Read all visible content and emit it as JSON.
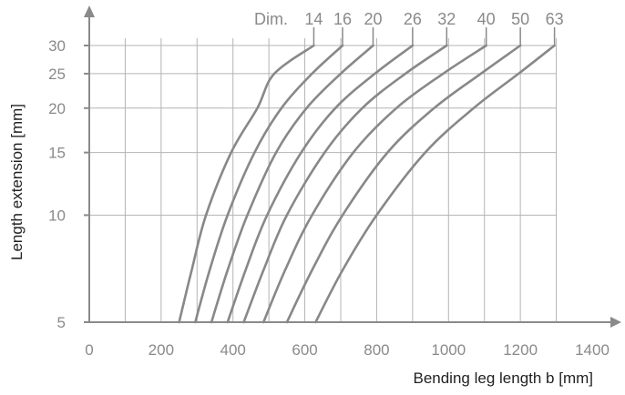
{
  "chart_data": {
    "type": "line",
    "title": "",
    "xlabel": "Bending leg length b [mm]",
    "ylabel": "Length extension [mm]",
    "xlim": [
      0,
      1400
    ],
    "ylim": [
      5,
      30
    ],
    "x_ticks": [
      0,
      200,
      400,
      600,
      800,
      1000,
      1200,
      1400
    ],
    "y_ticks": [
      5,
      10,
      15,
      20,
      25,
      30
    ],
    "y_scale": "nonlinear (log-like)",
    "grid": true,
    "series_label_prefix": "Dim.",
    "line_color": "#888888",
    "grid_color": "#b4b4b4",
    "axis_color": "#8a8a8a",
    "series": [
      {
        "name": "14",
        "points": [
          [
            250,
            5
          ],
          [
            285,
            7
          ],
          [
            325,
            10
          ],
          [
            395,
            15
          ],
          [
            468,
            20
          ],
          [
            515,
            25
          ],
          [
            625,
            30
          ]
        ]
      },
      {
        "name": "16",
        "points": [
          [
            295,
            5
          ],
          [
            335,
            7
          ],
          [
            385,
            10
          ],
          [
            460,
            15
          ],
          [
            535,
            20
          ],
          [
            620,
            25
          ],
          [
            705,
            30
          ]
        ]
      },
      {
        "name": "20",
        "points": [
          [
            340,
            5
          ],
          [
            385,
            7
          ],
          [
            440,
            10
          ],
          [
            520,
            15
          ],
          [
            605,
            20
          ],
          [
            700,
            25
          ],
          [
            790,
            30
          ]
        ]
      },
      {
        "name": "26",
        "points": [
          [
            385,
            5
          ],
          [
            435,
            7
          ],
          [
            495,
            10
          ],
          [
            590,
            15
          ],
          [
            685,
            20
          ],
          [
            795,
            25
          ],
          [
            900,
            30
          ]
        ]
      },
      {
        "name": "32",
        "points": [
          [
            430,
            5
          ],
          [
            485,
            7
          ],
          [
            550,
            10
          ],
          [
            655,
            15
          ],
          [
            760,
            20
          ],
          [
            880,
            25
          ],
          [
            995,
            30
          ]
        ]
      },
      {
        "name": "40",
        "points": [
          [
            485,
            5
          ],
          [
            545,
            7
          ],
          [
            620,
            10
          ],
          [
            735,
            15
          ],
          [
            855,
            20
          ],
          [
            985,
            25
          ],
          [
            1105,
            30
          ]
        ]
      },
      {
        "name": "50",
        "points": [
          [
            550,
            5
          ],
          [
            620,
            7
          ],
          [
            705,
            10
          ],
          [
            830,
            15
          ],
          [
            960,
            20
          ],
          [
            1090,
            25
          ],
          [
            1200,
            30
          ]
        ]
      },
      {
        "name": "63",
        "points": [
          [
            630,
            5
          ],
          [
            705,
            7
          ],
          [
            800,
            10
          ],
          [
            935,
            15
          ],
          [
            1070,
            20
          ],
          [
            1195,
            25
          ],
          [
            1295,
            30
          ]
        ]
      }
    ]
  }
}
